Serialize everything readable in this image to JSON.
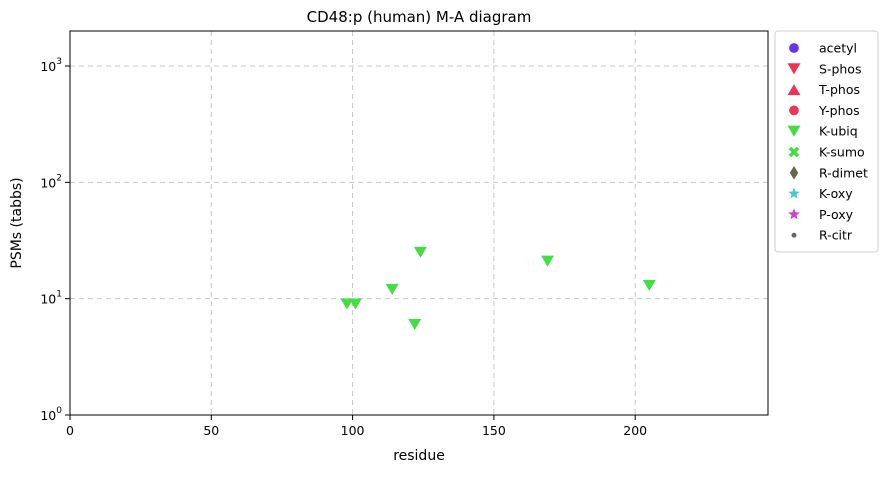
{
  "chart_data": {
    "type": "scatter",
    "title": "CD48:p (human) M-A diagram",
    "xlabel": "residue",
    "ylabel": "PSMs (tabbs)",
    "xlim": [
      0,
      247
    ],
    "ylim": [
      1,
      2000
    ],
    "yscale": "log",
    "grid": true,
    "legend_position": "outside-top-right",
    "x_ticks": [
      {
        "value": 0,
        "label": "0"
      },
      {
        "value": 50,
        "label": "50"
      },
      {
        "value": 100,
        "label": "100"
      },
      {
        "value": 150,
        "label": "150"
      },
      {
        "value": 200,
        "label": "200"
      }
    ],
    "y_ticks": [
      {
        "value": 1,
        "base": "10",
        "exp": "0"
      },
      {
        "value": 10,
        "base": "10",
        "exp": "1"
      },
      {
        "value": 100,
        "base": "10",
        "exp": "2"
      },
      {
        "value": 1000,
        "base": "10",
        "exp": "3"
      }
    ],
    "legend": [
      {
        "label": "acetyl",
        "marker": "circle",
        "color": "#6633ee"
      },
      {
        "label": "S-phos",
        "marker": "triangle-down",
        "color": "#ee3355"
      },
      {
        "label": "T-phos",
        "marker": "triangle-up",
        "color": "#ee3355"
      },
      {
        "label": "Y-phos",
        "marker": "circle",
        "color": "#ee3355"
      },
      {
        "label": "K-ubiq",
        "marker": "triangle-down",
        "color": "#44dd44"
      },
      {
        "label": "K-sumo",
        "marker": "x",
        "color": "#44dd44"
      },
      {
        "label": "R-dimet",
        "marker": "diamond",
        "color": "#666644"
      },
      {
        "label": "K-oxy",
        "marker": "star",
        "color": "#44cccc"
      },
      {
        "label": "P-oxy",
        "marker": "star",
        "color": "#cc44cc"
      },
      {
        "label": "R-citr",
        "marker": "dot",
        "color": "#666666"
      }
    ],
    "series": [
      {
        "name": "K-ubiq",
        "marker": "triangle-down",
        "color": "#44dd44",
        "points": [
          {
            "x": 98,
            "y": 9
          },
          {
            "x": 101,
            "y": 9
          },
          {
            "x": 114,
            "y": 12
          },
          {
            "x": 122,
            "y": 6
          },
          {
            "x": 124,
            "y": 25
          },
          {
            "x": 169,
            "y": 21
          },
          {
            "x": 205,
            "y": 13
          }
        ]
      }
    ]
  }
}
